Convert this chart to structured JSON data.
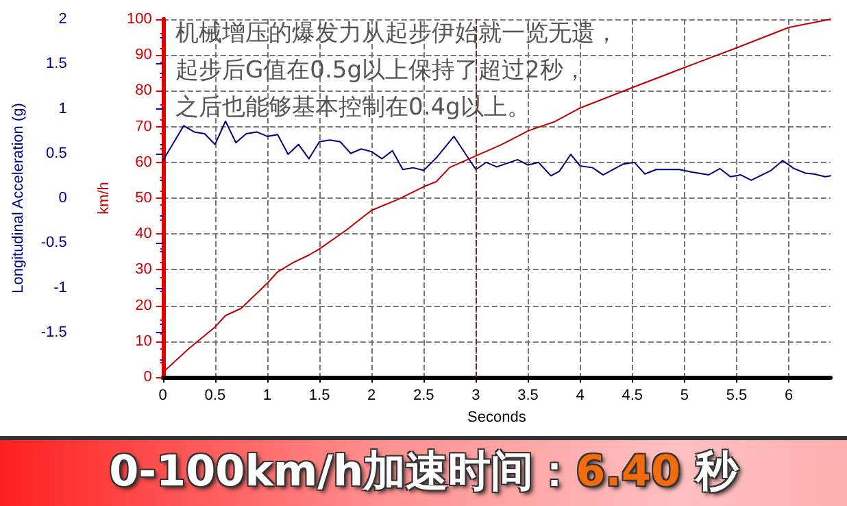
{
  "chart_data": {
    "type": "line",
    "title": "0-100km/h加速时间：6.40 秒",
    "annotations": [
      "机械增压的爆发力从起步伊始就一览无遗，",
      "起步后G值在0.5g以上保持了超过2秒，",
      "之后也能够基本控制在0.4g以上。"
    ],
    "xlabel": "Seconds",
    "ylabel": "Longitudinal Acceleration (g)",
    "y2label": "km/h",
    "xlim": [
      0,
      6.4
    ],
    "xticks": [
      0,
      0.5,
      1,
      1.5,
      2,
      2.5,
      3,
      3.5,
      4,
      4.5,
      5,
      5.5,
      6
    ],
    "ylim": [
      -2,
      2
    ],
    "yticks": [
      -1.5,
      -1,
      -0.5,
      0,
      0.5,
      1,
      1.5,
      2
    ],
    "y2lim": [
      0,
      100
    ],
    "y2ticks": [
      0,
      10,
      20,
      30,
      40,
      50,
      60,
      70,
      80,
      90,
      100
    ],
    "grid": true,
    "marker": "none",
    "line_style": "solid",
    "ref_lines": [
      {
        "axis": "x",
        "value": 3,
        "color": "#8b1a1a",
        "line_style": "dashed"
      }
    ],
    "series": [
      {
        "color": "#000080",
        "axis": "y",
        "x": [
          0,
          0.2,
          0.3,
          0.4,
          0.5,
          0.55,
          0.6,
          0.7,
          0.8,
          0.9,
          1.0,
          1.1,
          1.2,
          1.3,
          1.4,
          1.5,
          1.6,
          1.7,
          1.8,
          1.9,
          2.0,
          2.1,
          2.2,
          2.3,
          2.4,
          2.5,
          2.62,
          2.79,
          3.0,
          3.1,
          3.2,
          3.4,
          3.5,
          3.6,
          3.72,
          3.8,
          3.91,
          4.0,
          4.12,
          4.22,
          4.41,
          4.52,
          4.62,
          4.73,
          4.95,
          5.08,
          5.23,
          5.34,
          5.44,
          5.54,
          5.64,
          5.83,
          5.94,
          6.05,
          6.16,
          6.24,
          6.35,
          6.4
        ],
        "values": [
          0.42,
          0.81,
          0.74,
          0.72,
          0.6,
          0.73,
          0.86,
          0.62,
          0.72,
          0.74,
          0.69,
          0.71,
          0.49,
          0.6,
          0.44,
          0.63,
          0.65,
          0.63,
          0.5,
          0.55,
          0.52,
          0.44,
          0.53,
          0.32,
          0.34,
          0.31,
          0.45,
          0.69,
          0.32,
          0.4,
          0.35,
          0.43,
          0.37,
          0.4,
          0.25,
          0.3,
          0.49,
          0.36,
          0.34,
          0.26,
          0.38,
          0.4,
          0.27,
          0.32,
          0.32,
          0.29,
          0.26,
          0.33,
          0.24,
          0.26,
          0.2,
          0.31,
          0.42,
          0.33,
          0.28,
          0.27,
          0.24,
          0.25
        ]
      },
      {
        "color": "#c00000",
        "axis": "y2",
        "x": [
          0,
          0.25,
          0.5,
          0.6,
          0.75,
          1.0,
          1.1,
          1.25,
          1.4,
          1.5,
          1.75,
          2.0,
          2.25,
          2.5,
          2.62,
          2.75,
          3.0,
          3.25,
          3.5,
          3.75,
          4.0,
          4.5,
          5.0,
          5.5,
          6.0,
          6.4
        ],
        "values": [
          1.3,
          8,
          14,
          17.2,
          19.2,
          26.2,
          29.4,
          32,
          34.1,
          35.8,
          40.9,
          46.6,
          49.6,
          53.2,
          54.6,
          58.6,
          61.8,
          65,
          68.8,
          71.3,
          75.2,
          80.9,
          86.5,
          92,
          97.7,
          100
        ]
      }
    ]
  }
}
